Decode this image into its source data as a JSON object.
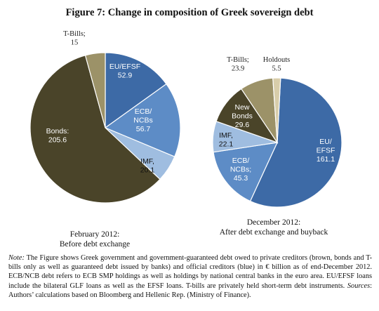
{
  "title": "Figure 7: Change in composition of Greek sovereign debt",
  "chart_data": [
    {
      "type": "pie",
      "caption_line1": "February 2012:",
      "caption_line2": "Before debt exchange",
      "slices": [
        {
          "label": "EU/EFSF",
          "value": 52.9,
          "value_text": "52.9",
          "color": "#3d6aa6"
        },
        {
          "label": "ECB/ NCBs",
          "value": 56.7,
          "value_text": "56.7",
          "color": "#5d8cc6"
        },
        {
          "label": "IMF,",
          "value": 20.1,
          "value_text": "20.1",
          "color": "#9fbde0"
        },
        {
          "label": "Bonds:",
          "value": 205.6,
          "value_text": "205.6",
          "color": "#4a4429"
        },
        {
          "label": "T-Bills;",
          "value": 15,
          "value_text": "15",
          "color": "#9c9268"
        }
      ]
    },
    {
      "type": "pie",
      "caption_line1": "December 2012:",
      "caption_line2": "After debt exchange and buyback",
      "slices": [
        {
          "label": "EU/ EFSF",
          "value": 161.1,
          "value_text": "161.1",
          "color": "#3d6aa6"
        },
        {
          "label": "ECB/ NCBs;",
          "value": 45.3,
          "value_text": "45.3",
          "color": "#5d8cc6"
        },
        {
          "label": "IMF,",
          "value": 22.1,
          "value_text": "22.1",
          "color": "#9fbde0"
        },
        {
          "label": "New Bonds",
          "value": 29.6,
          "value_text": "29.6",
          "color": "#4a4429"
        },
        {
          "label": "T-Bills;",
          "value": 23.9,
          "value_text": "23.9",
          "color": "#9c9268"
        },
        {
          "label": "Holdouts",
          "value": 5.5,
          "value_text": "5.5",
          "color": "#d8cdaa"
        }
      ]
    }
  ],
  "note": {
    "note_label": "Note:",
    "note_text": " The Figure shows Greek government and government-guaranteed debt owed to private creditors (brown, bonds and T-bills only as well as guaranteed debt issued by banks) and official creditors (blue) in € billion as of end-December 2012. ECB/NCB debt refers to ECB SMP holdings as well as holdings by national central banks in the euro area. EU/EFSF loans include the bilateral GLF loans as well as the EFSF loans. T-bills are privately held short-term debt instruments. ",
    "sources_label": "Sources",
    "sources_text": ": Authors’ calculations based on Bloomberg and Hellenic Rep. (Ministry of Finance)."
  }
}
